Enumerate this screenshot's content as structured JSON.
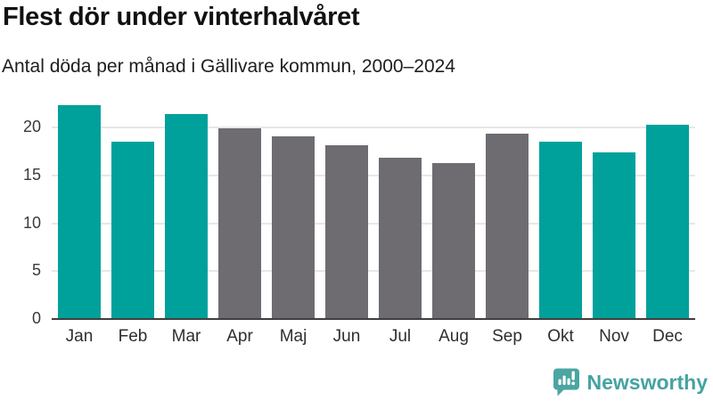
{
  "header": {
    "title": "Flest dör under vinterhalvåret",
    "subtitle": "Antal döda per månad i Gällivare kommun, 2000–2024"
  },
  "chart_data": {
    "type": "bar",
    "title": "Flest dör under vinterhalvåret",
    "subtitle": "Antal döda per månad i Gällivare kommun, 2000–2024",
    "categories": [
      "Jan",
      "Feb",
      "Mar",
      "Apr",
      "Maj",
      "Jun",
      "Jul",
      "Aug",
      "Sep",
      "Okt",
      "Nov",
      "Dec"
    ],
    "values": [
      22.4,
      18.5,
      21.4,
      19.9,
      19.1,
      18.2,
      16.9,
      16.3,
      19.4,
      18.5,
      17.4,
      20.3
    ],
    "bar_colors": [
      "#00a09b",
      "#00a09b",
      "#00a09b",
      "#6e6c71",
      "#6e6c71",
      "#6e6c71",
      "#6e6c71",
      "#6e6c71",
      "#6e6c71",
      "#00a09b",
      "#00a09b",
      "#00a09b"
    ],
    "xlabel": "",
    "ylabel": "",
    "ylim": [
      0,
      23.2
    ],
    "yticks": [
      0,
      5,
      10,
      15,
      20
    ],
    "grid": "horizontal",
    "legend": "none"
  },
  "colors": {
    "bar_highlight": "#00a09b",
    "bar_default": "#6e6c71",
    "gridline": "#e7e7e7",
    "axis_line": "#3f3f3f",
    "title_text": "#111111",
    "logo_teal": "#45a3a0"
  },
  "footer": {
    "brand": "Newsworthy",
    "logo_icon": "speech-bubble-bar-chart-exclamation"
  }
}
